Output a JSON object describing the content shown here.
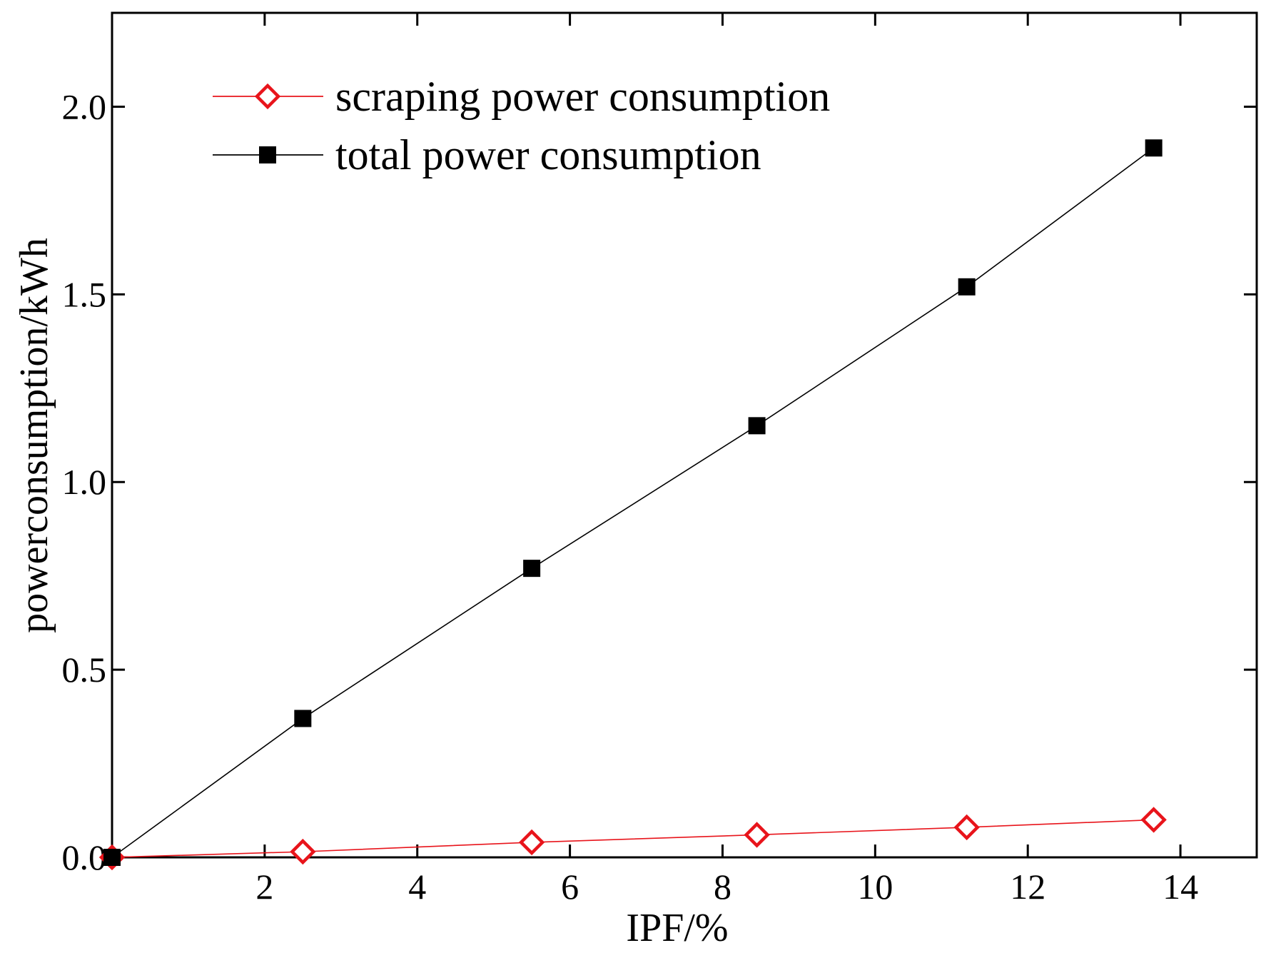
{
  "chart_data": {
    "type": "line",
    "title": "",
    "xlabel": "IPF/%",
    "ylabel": "powerconsumption/kWh",
    "xlim": [
      0,
      15
    ],
    "ylim": [
      0,
      2.25
    ],
    "xticks": [
      2,
      4,
      6,
      8,
      10,
      12,
      14
    ],
    "xtick_labels": [
      "2",
      "4",
      "6",
      "8",
      "10",
      "12",
      "14"
    ],
    "yticks": [
      0.0,
      0.5,
      1.0,
      1.5,
      2.0
    ],
    "ytick_labels": [
      "0.0",
      "0.5",
      "1.0",
      "1.5",
      "2.0"
    ],
    "grid": false,
    "legend_position": "top-left",
    "series": [
      {
        "name": "scraping power consumption",
        "color": "#e8141b",
        "marker": "open-diamond",
        "x": [
          0,
          2.5,
          5.5,
          8.45,
          11.2,
          13.65
        ],
        "values": [
          0.0,
          0.015,
          0.04,
          0.06,
          0.08,
          0.1
        ]
      },
      {
        "name": "total power consumption",
        "color": "#000000",
        "marker": "filled-square",
        "x": [
          0,
          2.5,
          5.5,
          8.45,
          11.2,
          13.65
        ],
        "values": [
          0.0,
          0.37,
          0.77,
          1.15,
          1.52,
          1.89
        ]
      }
    ]
  }
}
